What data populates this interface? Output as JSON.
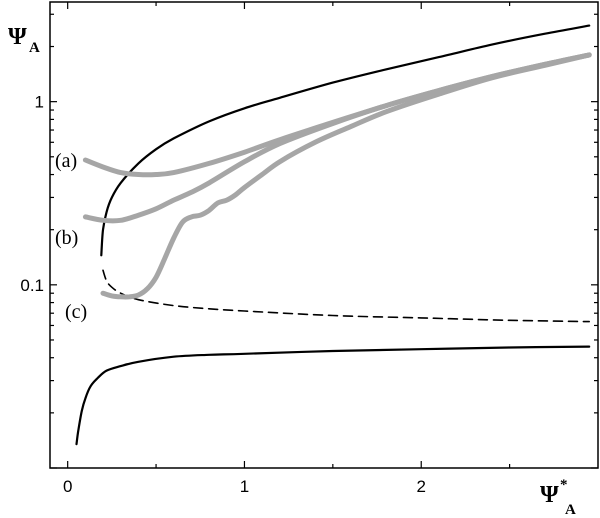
{
  "chart_data": {
    "type": "line",
    "title": "",
    "xlabel": {
      "symbol": "Ψ",
      "sup": "*",
      "sub": "A"
    },
    "ylabel": {
      "symbol": "Ψ",
      "sub": "A"
    },
    "xlim": [
      -0.1,
      3.0
    ],
    "ylim": [
      0.01,
      3.5
    ],
    "yscale": "log",
    "grid": false,
    "xticks": [
      0,
      1,
      2
    ],
    "xtick_labels": [
      "0",
      "1",
      "2"
    ],
    "yticks": [
      0.1,
      1
    ],
    "ytick_labels": [
      "0.1",
      "1"
    ],
    "annotations": [
      {
        "text": "(a)",
        "series": "a"
      },
      {
        "text": "(b)",
        "series": "b"
      },
      {
        "text": "(c)",
        "series": "c"
      }
    ],
    "series": [
      {
        "id": "upper-branch",
        "style": "solid-black",
        "x": [
          0.19,
          0.2,
          0.22,
          0.25,
          0.3,
          0.4,
          0.5,
          0.6,
          0.8,
          1.0,
          1.2,
          1.5,
          1.8,
          2.1,
          2.4,
          2.7,
          2.95
        ],
        "y": [
          0.145,
          0.2,
          0.25,
          0.3,
          0.36,
          0.46,
          0.55,
          0.63,
          0.78,
          0.92,
          1.05,
          1.27,
          1.5,
          1.75,
          2.05,
          2.35,
          2.6
        ]
      },
      {
        "id": "unstable-branch",
        "style": "dashed-black",
        "x": [
          0.2,
          0.22,
          0.25,
          0.3,
          0.4,
          0.6,
          0.8,
          1.0,
          1.5,
          2.0,
          2.5,
          2.95
        ],
        "y": [
          0.12,
          0.105,
          0.097,
          0.09,
          0.083,
          0.077,
          0.074,
          0.072,
          0.068,
          0.066,
          0.064,
          0.063
        ]
      },
      {
        "id": "lower-branch",
        "style": "solid-black",
        "x": [
          0.05,
          0.06,
          0.08,
          0.1,
          0.13,
          0.17,
          0.22,
          0.3,
          0.4,
          0.6,
          0.8,
          1.0,
          1.5,
          2.0,
          2.5,
          2.95
        ],
        "y": [
          0.0135,
          0.016,
          0.0205,
          0.024,
          0.028,
          0.031,
          0.034,
          0.036,
          0.038,
          0.0405,
          0.0415,
          0.042,
          0.0435,
          0.0445,
          0.0455,
          0.046
        ]
      },
      {
        "id": "a",
        "style": "thick-gray",
        "x": [
          0.1,
          0.2,
          0.3,
          0.4,
          0.5,
          0.6,
          0.8,
          1.0,
          1.2,
          1.5,
          1.8,
          2.1,
          2.4,
          2.7,
          2.95
        ],
        "y": [
          0.48,
          0.44,
          0.41,
          0.4,
          0.4,
          0.41,
          0.46,
          0.53,
          0.62,
          0.77,
          0.95,
          1.15,
          1.37,
          1.6,
          1.8
        ]
      },
      {
        "id": "b",
        "style": "thick-gray",
        "x": [
          0.1,
          0.2,
          0.3,
          0.4,
          0.5,
          0.6,
          0.7,
          0.8,
          1.0,
          1.2,
          1.5,
          1.8,
          2.1,
          2.4,
          2.7,
          2.95
        ],
        "y": [
          0.235,
          0.225,
          0.225,
          0.24,
          0.26,
          0.29,
          0.32,
          0.36,
          0.47,
          0.59,
          0.76,
          0.95,
          1.15,
          1.37,
          1.6,
          1.8
        ]
      },
      {
        "id": "c",
        "style": "thick-gray",
        "x": [
          0.2,
          0.25,
          0.3,
          0.35,
          0.4,
          0.45,
          0.5,
          0.55,
          0.6,
          0.65,
          0.7,
          0.75,
          0.8,
          0.85,
          0.9,
          0.95,
          1.0,
          1.1,
          1.2,
          1.4,
          1.6,
          1.8,
          2.1,
          2.4,
          2.7,
          2.95
        ],
        "y": [
          0.09,
          0.087,
          0.086,
          0.086,
          0.088,
          0.095,
          0.11,
          0.14,
          0.18,
          0.22,
          0.235,
          0.24,
          0.255,
          0.28,
          0.29,
          0.31,
          0.34,
          0.4,
          0.47,
          0.6,
          0.73,
          0.88,
          1.1,
          1.35,
          1.58,
          1.8
        ]
      }
    ]
  }
}
